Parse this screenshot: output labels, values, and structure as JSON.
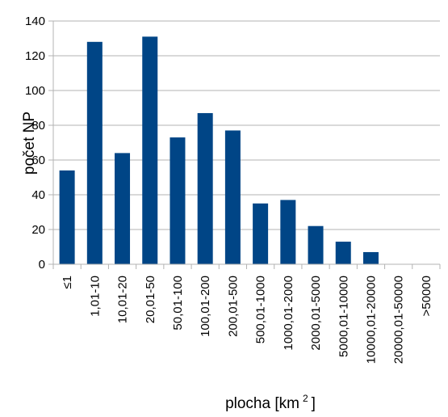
{
  "chart_data": {
    "type": "bar",
    "title": "",
    "xlabel": "plocha [km",
    "xlabel_sup": "2",
    "xlabel_end": "]",
    "ylabel": "počet NP",
    "ylim": [
      0,
      140
    ],
    "yticks": [
      0,
      20,
      40,
      60,
      80,
      100,
      120,
      140
    ],
    "grid": true,
    "legend": "none",
    "bar_color": "#004586",
    "categories": [
      "≤1",
      "1,01-10",
      "10,01-20",
      "20,01-50",
      "50,01-100",
      "100,01-200",
      "200,01-500",
      "500,01-1000",
      "1000,01-2000",
      "2000,01-5000",
      "5000,01-10000",
      "10000,01-20000",
      "20000,01-50000",
      ">50000"
    ],
    "values": [
      54,
      128,
      64,
      131,
      73,
      87,
      77,
      35,
      37,
      22,
      13,
      7,
      0,
      0
    ]
  }
}
